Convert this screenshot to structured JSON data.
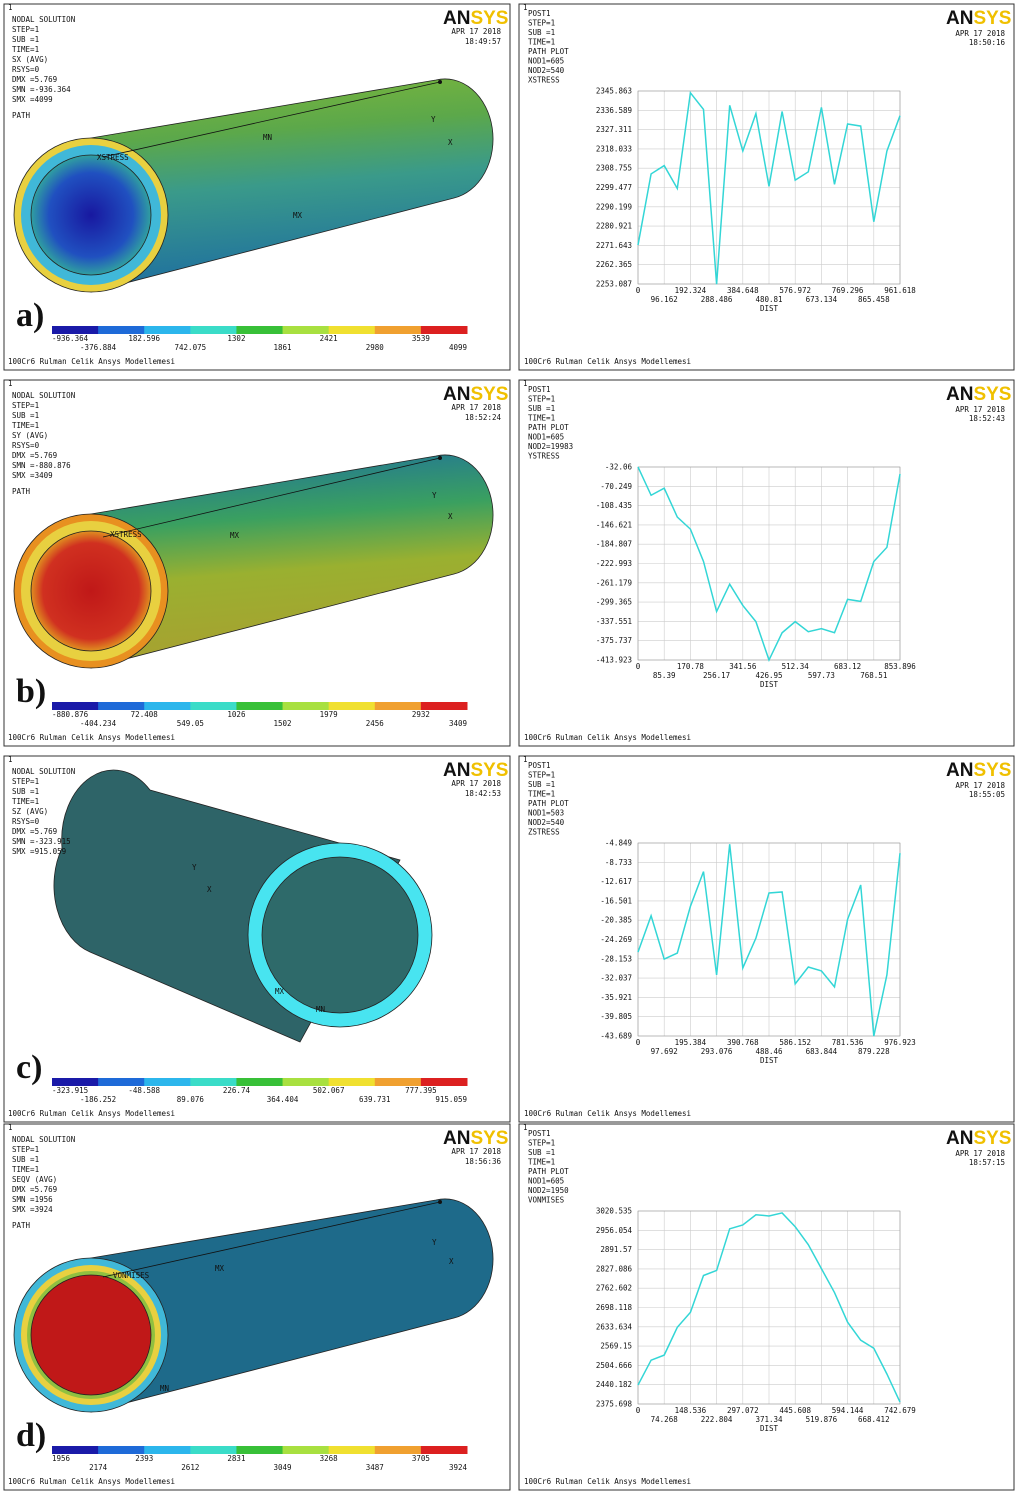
{
  "window": "1",
  "logo": [
    "AN",
    "SYS"
  ],
  "date": "APR 17 2018",
  "footer": "100Cr6 Rulman Celik Ansys Modellemesi",
  "colorbar_colors": [
    "#1a1aa8",
    "#1e6ad8",
    "#2cb6ec",
    "#3adcc8",
    "#38c038",
    "#a8e040",
    "#f0e030",
    "#f0a030",
    "#dc2020"
  ],
  "contour_panels": [
    {
      "info": [
        "NODAL SOLUTION",
        "STEP=1",
        "SUB =1",
        "TIME=1",
        "SX       (AVG)",
        "RSYS=0",
        "DMX =5.769",
        "SMN =-936.364",
        "SMX =4099"
      ],
      "path_label": "PATH",
      "time": "18:49:57",
      "tags": [
        "XSTRESS",
        "MN",
        "MX",
        "Y",
        "X"
      ],
      "letter": "a)",
      "colorbar": [
        "-936.364",
        "-376.884",
        "182.596",
        "742.075",
        "1302",
        "1861",
        "2421",
        "2980",
        "3539",
        "4099"
      ]
    },
    {
      "info": [
        "NODAL SOLUTION",
        "STEP=1",
        "SUB =1",
        "TIME=1",
        "SY       (AVG)",
        "RSYS=0",
        "DMX =5.769",
        "SMN =-880.876",
        "SMX =3409"
      ],
      "path_label": "PATH",
      "time": "18:52:24",
      "tags": [
        "XSTRESS",
        "MX",
        "Y",
        "X"
      ],
      "letter": "b)",
      "colorbar": [
        "-880.876",
        "-404.234",
        "72.408",
        "549.05",
        "1026",
        "1502",
        "1979",
        "2456",
        "2932",
        "3409"
      ]
    },
    {
      "info": [
        "NODAL SOLUTION",
        "STEP=1",
        "SUB =1",
        "TIME=1",
        "SZ       (AVG)",
        "RSYS=0",
        "DMX =5.769",
        "SMN =-323.915",
        "SMX =915.059"
      ],
      "time": "18:42:53",
      "tags": [
        "Y",
        "X",
        "MX",
        "MN"
      ],
      "letter": "c)",
      "colorbar": [
        "-323.915",
        "-186.252",
        "-48.588",
        "89.076",
        "226.74",
        "364.404",
        "502.067",
        "639.731",
        "777.395",
        "915.059"
      ]
    },
    {
      "info": [
        "NODAL SOLUTION",
        "STEP=1",
        "SUB =1",
        "TIME=1",
        "SEQV     (AVG)",
        "DMX =5.769",
        "SMN =1956",
        "SMX =3924"
      ],
      "path_label": "PATH",
      "time": "18:56:36",
      "tags": [
        "VONMISES",
        "MX",
        "MN",
        "Y",
        "X"
      ],
      "letter": "d)",
      "colorbar": [
        "1956",
        "2174",
        "2393",
        "2612",
        "2831",
        "3049",
        "3268",
        "3487",
        "3705",
        "3924"
      ]
    }
  ],
  "chart_data": [
    {
      "type": "line",
      "info": [
        "POST1",
        "STEP=1",
        "SUB =1",
        "TIME=1",
        "PATH PLOT",
        "NOD1=605",
        "NOD2=540"
      ],
      "time": "18:50:16",
      "xlabel": "DIST",
      "grid": true,
      "x": [
        0,
        48.08,
        96.16,
        144.24,
        192.32,
        240.4,
        288.49,
        336.57,
        384.65,
        432.73,
        480.81,
        528.89,
        576.97,
        625.05,
        673.13,
        721.21,
        769.3,
        817.38,
        865.46,
        913.54,
        961.62
      ],
      "series": [
        {
          "name": "XSTRESS",
          "color": "#33d6d6",
          "values": [
            2271.8,
            2306,
            2310,
            2299,
            2345,
            2337,
            2253,
            2339,
            2317,
            2335,
            2300,
            2336,
            2303,
            2307,
            2338,
            2301,
            2330,
            2329,
            2283,
            2317,
            2334
          ]
        }
      ],
      "xlim": [
        0,
        961.618
      ],
      "ylim": [
        2253.087,
        2345.863
      ],
      "xticks": [
        0,
        96.162,
        192.324,
        288.486,
        384.648,
        480.81,
        576.972,
        673.134,
        769.296,
        865.458,
        961.618
      ],
      "yticks": [
        2253.087,
        2262.365,
        2271.643,
        2280.921,
        2290.199,
        2299.477,
        2308.755,
        2318.033,
        2327.311,
        2336.589,
        2345.863
      ]
    },
    {
      "type": "line",
      "info": [
        "POST1",
        "STEP=1",
        "SUB =1",
        "TIME=1",
        "PATH PLOT",
        "NOD1=605",
        "NOD2=19983"
      ],
      "time": "18:52:43",
      "xlabel": "DIST",
      "grid": true,
      "x": [
        0,
        42.69,
        85.39,
        128.08,
        170.78,
        213.47,
        256.17,
        298.86,
        341.56,
        384.25,
        426.95,
        469.64,
        512.34,
        555.03,
        597.73,
        640.42,
        683.12,
        725.81,
        768.51,
        811.2,
        853.896
      ],
      "series": [
        {
          "name": "YSTRESS",
          "color": "#33d6d6",
          "values": [
            -32,
            -88,
            -74,
            -131,
            -155,
            -219,
            -318,
            -264,
            -306,
            -338,
            -414,
            -360,
            -338,
            -358,
            -352,
            -360,
            -294,
            -298,
            -219,
            -191,
            -46
          ]
        }
      ],
      "xlim": [
        0,
        853.896
      ],
      "ylim": [
        -413.923,
        -32.06
      ],
      "xticks": [
        0,
        85.39,
        170.78,
        256.17,
        341.56,
        426.95,
        512.34,
        597.73,
        683.12,
        768.51,
        853.896
      ],
      "yticks": [
        -413.923,
        -375.737,
        -337.551,
        -299.365,
        -261.179,
        -222.993,
        -184.807,
        -146.621,
        -108.435,
        -70.249,
        -32.06
      ]
    },
    {
      "type": "line",
      "info": [
        "POST1",
        "STEP=1",
        "SUB =1",
        "TIME=1",
        "PATH PLOT",
        "NOD1=503",
        "NOD2=540"
      ],
      "time": "18:55:05",
      "xlabel": "DIST",
      "grid": true,
      "x": [
        0,
        48.85,
        97.69,
        146.54,
        195.38,
        244.23,
        293.08,
        341.92,
        390.77,
        439.61,
        488.46,
        537.31,
        586.15,
        635,
        683.84,
        732.69,
        781.54,
        830.38,
        879.23,
        928.08,
        976.923
      ],
      "series": [
        {
          "name": "ZSTRESS",
          "color": "#33d6d6",
          "values": [
            -26.8,
            -19.5,
            -28.2,
            -27,
            -17.6,
            -10.6,
            -31.4,
            -5.1,
            -30,
            -24,
            -14.9,
            -14.7,
            -33.2,
            -29.8,
            -30.6,
            -33.8,
            -20.2,
            -13.3,
            -43.7,
            -31.4,
            -6.9
          ]
        }
      ],
      "xlim": [
        0,
        976.923
      ],
      "ylim": [
        -43.689,
        -4.849
      ],
      "xticks": [
        0,
        97.692,
        195.384,
        293.076,
        390.768,
        488.46,
        586.152,
        683.844,
        781.536,
        879.228,
        976.923
      ],
      "yticks": [
        -43.689,
        -39.805,
        -35.921,
        -32.037,
        -28.153,
        -24.269,
        -20.385,
        -16.501,
        -12.617,
        -8.733,
        -4.849
      ]
    },
    {
      "type": "line",
      "info": [
        "POST1",
        "STEP=1",
        "SUB =1",
        "TIME=1",
        "PATH PLOT",
        "NOD1=605",
        "NOD2=1950"
      ],
      "time": "18:57:15",
      "xlabel": "DIST",
      "grid": true,
      "x": [
        0,
        37.13,
        74.27,
        111.4,
        148.54,
        185.67,
        222.8,
        259.94,
        297.07,
        334.21,
        371.34,
        408.47,
        445.61,
        482.74,
        519.88,
        557.01,
        594.14,
        631.28,
        668.41,
        705.55,
        742.679
      ],
      "series": [
        {
          "name": "VONMISES",
          "color": "#33d6d6",
          "values": [
            2439,
            2522,
            2539,
            2632,
            2682,
            2805,
            2822,
            2961,
            2974,
            3008,
            3004,
            3014,
            2968,
            2908,
            2828,
            2748,
            2649,
            2589,
            2562,
            2476,
            2382
          ]
        }
      ],
      "xlim": [
        0,
        742.679
      ],
      "ylim": [
        2375.698,
        3020.535
      ],
      "xticks": [
        0,
        74.268,
        148.536,
        222.804,
        297.072,
        371.34,
        445.608,
        519.876,
        594.144,
        668.412,
        742.679
      ],
      "yticks": [
        2375.698,
        2440.182,
        2504.666,
        2569.15,
        2633.634,
        2698.118,
        2762.602,
        2827.086,
        2891.57,
        2956.054,
        3020.535
      ]
    }
  ]
}
